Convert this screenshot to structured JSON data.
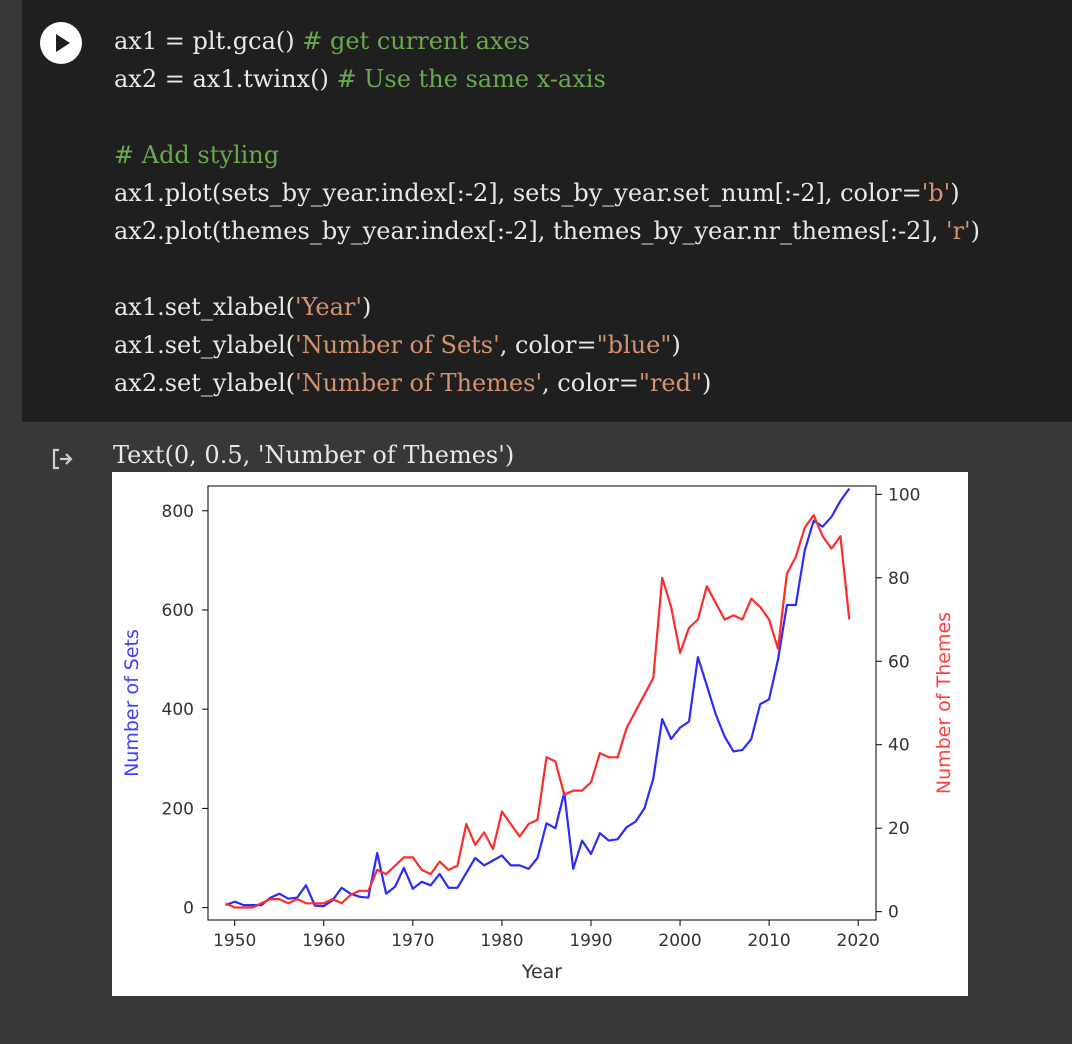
{
  "code_cell": {
    "run_button_label": "Run cell",
    "lines": [
      [
        {
          "t": "ax1 = plt.gca() ",
          "c": ""
        },
        {
          "t": "# get current axes",
          "c": "tok-comment"
        }
      ],
      [
        {
          "t": "ax2 = ax1.twinx() ",
          "c": ""
        },
        {
          "t": "# Use the same x-axis",
          "c": "tok-comment"
        }
      ],
      [
        {
          "t": "",
          "c": ""
        }
      ],
      [
        {
          "t": "# Add styling",
          "c": "tok-comment"
        }
      ],
      [
        {
          "t": "ax1.plot(sets_by_year.index[:-2], sets_by_year.set_num[:-2], color=",
          "c": ""
        },
        {
          "t": "'b'",
          "c": "tok-str"
        },
        {
          "t": ")",
          "c": ""
        }
      ],
      [
        {
          "t": "ax2.plot(themes_by_year.index[:-2], themes_by_year.nr_themes[:-2], ",
          "c": ""
        },
        {
          "t": "'r'",
          "c": "tok-str"
        },
        {
          "t": ")",
          "c": ""
        }
      ],
      [
        {
          "t": "",
          "c": ""
        }
      ],
      [
        {
          "t": "ax1.set_xlabel(",
          "c": ""
        },
        {
          "t": "'Year'",
          "c": "tok-str"
        },
        {
          "t": ")",
          "c": ""
        }
      ],
      [
        {
          "t": "ax1.set_ylabel(",
          "c": ""
        },
        {
          "t": "'Number of Sets'",
          "c": "tok-str"
        },
        {
          "t": ", color=",
          "c": ""
        },
        {
          "t": "\"blue\"",
          "c": "tok-str"
        },
        {
          "t": ")",
          "c": ""
        }
      ],
      [
        {
          "t": "ax2.set_ylabel(",
          "c": ""
        },
        {
          "t": "'Number of Themes'",
          "c": "tok-str"
        },
        {
          "t": ", color=",
          "c": ""
        },
        {
          "t": "\"red\"",
          "c": "tok-str"
        },
        {
          "t": ")",
          "c": ""
        }
      ]
    ]
  },
  "output": {
    "text": "Text(0, 0.5, 'Number of Themes')"
  },
  "chart_data": {
    "type": "line",
    "xlabel": "Year",
    "ylabel_left": "Number of Sets",
    "ylabel_right": "Number of Themes",
    "xlim": [
      1947,
      2022
    ],
    "ylim_left": [
      -25,
      850
    ],
    "ylim_right": [
      -2,
      102
    ],
    "xticks": [
      1950,
      1960,
      1970,
      1980,
      1990,
      2000,
      2010,
      2020
    ],
    "yticks_left": [
      0,
      200,
      400,
      600,
      800
    ],
    "yticks_right": [
      0,
      20,
      40,
      60,
      80,
      100
    ],
    "colors": {
      "sets": "#2b2bff",
      "themes": "#ff2b2b",
      "left_label": "#3f3fff",
      "right_label": "#ff3f3f"
    },
    "series": [
      {
        "name": "Number of Sets",
        "axis": "left",
        "x": [
          1949,
          1950,
          1951,
          1952,
          1953,
          1954,
          1955,
          1956,
          1957,
          1958,
          1959,
          1960,
          1961,
          1962,
          1963,
          1964,
          1965,
          1966,
          1967,
          1968,
          1969,
          1970,
          1971,
          1972,
          1973,
          1974,
          1975,
          1976,
          1977,
          1978,
          1979,
          1980,
          1981,
          1982,
          1983,
          1984,
          1985,
          1986,
          1987,
          1988,
          1989,
          1990,
          1991,
          1992,
          1993,
          1994,
          1995,
          1996,
          1997,
          1998,
          1999,
          2000,
          2001,
          2002,
          2003,
          2004,
          2005,
          2006,
          2007,
          2008,
          2009,
          2010,
          2011,
          2012,
          2013,
          2014,
          2015,
          2016,
          2017,
          2018,
          2019
        ],
        "y": [
          5,
          12,
          5,
          5,
          5,
          20,
          28,
          18,
          20,
          45,
          4,
          3,
          15,
          40,
          28,
          22,
          20,
          110,
          28,
          42,
          80,
          38,
          52,
          45,
          68,
          40,
          40,
          70,
          100,
          85,
          95,
          105,
          85,
          85,
          78,
          100,
          170,
          160,
          232,
          78,
          135,
          108,
          150,
          135,
          138,
          162,
          173,
          200,
          260,
          380,
          340,
          363,
          375,
          505,
          448,
          390,
          345,
          315,
          318,
          340,
          410,
          420,
          500,
          610,
          610,
          720,
          780,
          768,
          788,
          820,
          845
        ]
      },
      {
        "name": "Number of Themes",
        "axis": "right",
        "x": [
          1949,
          1950,
          1951,
          1952,
          1953,
          1954,
          1955,
          1956,
          1957,
          1958,
          1959,
          1960,
          1961,
          1962,
          1963,
          1964,
          1965,
          1966,
          1967,
          1968,
          1969,
          1970,
          1971,
          1972,
          1973,
          1974,
          1975,
          1976,
          1977,
          1978,
          1979,
          1980,
          1981,
          1982,
          1983,
          1984,
          1985,
          1986,
          1987,
          1988,
          1989,
          1990,
          1991,
          1992,
          1993,
          1994,
          1995,
          1996,
          1997,
          1998,
          1999,
          2000,
          2001,
          2002,
          2003,
          2004,
          2005,
          2006,
          2007,
          2008,
          2009,
          2010,
          2011,
          2012,
          2013,
          2014,
          2015,
          2016,
          2017,
          2018,
          2019
        ],
        "y": [
          2,
          1,
          1,
          1,
          2,
          3,
          3,
          2,
          3,
          2,
          2,
          2,
          3,
          2,
          4,
          5,
          5,
          10,
          9,
          11,
          13,
          13,
          10,
          9,
          12,
          10,
          11,
          21,
          16,
          19,
          15,
          24,
          21,
          18,
          21,
          22,
          37,
          36,
          28,
          29,
          29,
          31,
          38,
          37,
          37,
          44,
          48,
          52,
          56,
          80,
          73,
          62,
          68,
          70,
          78,
          74,
          70,
          71,
          70,
          75,
          73,
          70,
          63,
          81,
          85,
          92,
          95,
          90,
          87,
          90,
          70
        ]
      }
    ]
  }
}
